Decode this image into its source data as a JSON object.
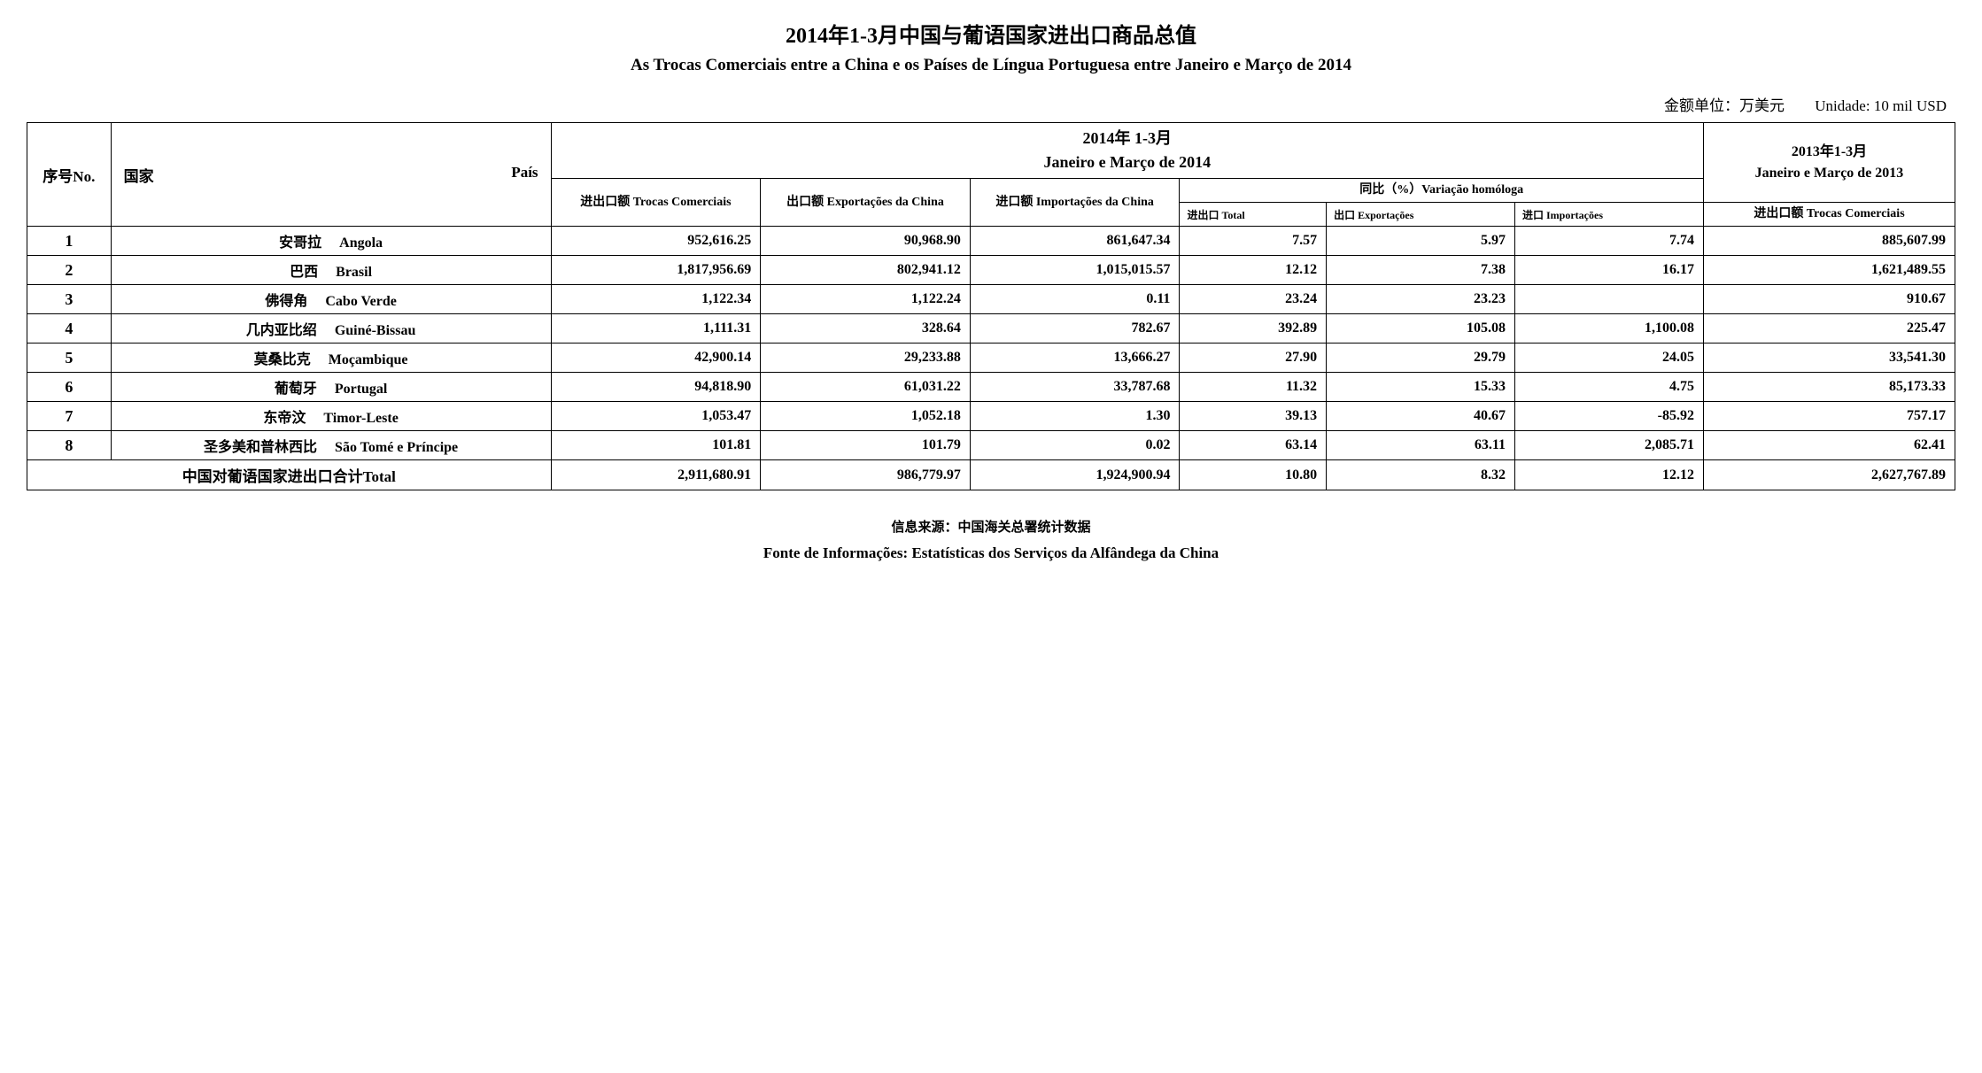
{
  "title_cn": "2014年1-3月中国与葡语国家进出口商品总值",
  "title_pt": "As Trocas Comerciais entre a China e os Países de Língua Portuguesa entre Janeiro e Março de  2014",
  "unit_cn": "金额单位：万美元",
  "unit_pt": "Unidade: 10 mil USD",
  "headers": {
    "no": "序号No.",
    "country_cn": "国家",
    "country_pt": "País",
    "period_2014_cn": "2014年 1-3月",
    "period_2014_pt": "Janeiro e Março de 2014",
    "period_2013_cn": "2013年1-3月",
    "period_2013_pt": "Janeiro e Março de 2013",
    "trocas": "进出口额     Trocas Comerciais",
    "export": "出口额     Exportações da China",
    "import": "进口额 Importações da China",
    "variation": "同比（%）Variação homóloga",
    "var_total": "进出口        Total",
    "var_export": "出口 Exportações",
    "var_import": "进口        Importações",
    "trocas_2013": "进出口额      Trocas Comerciais"
  },
  "rows": [
    {
      "no": "1",
      "cn": "安哥拉",
      "pt": "Angola",
      "trocas": "952,616.25",
      "export": "90,968.90",
      "import": "861,647.34",
      "v_total": "7.57",
      "v_exp": "5.97",
      "v_imp": "7.74",
      "trocas13": "885,607.99"
    },
    {
      "no": "2",
      "cn": "巴西",
      "pt": "Brasil",
      "trocas": "1,817,956.69",
      "export": "802,941.12",
      "import": "1,015,015.57",
      "v_total": "12.12",
      "v_exp": "7.38",
      "v_imp": "16.17",
      "trocas13": "1,621,489.55"
    },
    {
      "no": "3",
      "cn": "佛得角",
      "pt": "Cabo Verde",
      "trocas": "1,122.34",
      "export": "1,122.24",
      "import": "0.11",
      "v_total": "23.24",
      "v_exp": "23.23",
      "v_imp": "",
      "trocas13": "910.67"
    },
    {
      "no": "4",
      "cn": "几内亚比绍",
      "pt": "Guiné-Bissau",
      "trocas": "1,111.31",
      "export": "328.64",
      "import": "782.67",
      "v_total": "392.89",
      "v_exp": "105.08",
      "v_imp": "1,100.08",
      "trocas13": "225.47"
    },
    {
      "no": "5",
      "cn": "莫桑比克",
      "pt": "Moçambique",
      "trocas": "42,900.14",
      "export": "29,233.88",
      "import": "13,666.27",
      "v_total": "27.90",
      "v_exp": "29.79",
      "v_imp": "24.05",
      "trocas13": "33,541.30"
    },
    {
      "no": "6",
      "cn": "葡萄牙",
      "pt": "Portugal",
      "trocas": "94,818.90",
      "export": "61,031.22",
      "import": "33,787.68",
      "v_total": "11.32",
      "v_exp": "15.33",
      "v_imp": "4.75",
      "trocas13": "85,173.33"
    },
    {
      "no": "7",
      "cn": "东帝汶",
      "pt": "Timor-Leste",
      "trocas": "1,053.47",
      "export": "1,052.18",
      "import": "1.30",
      "v_total": "39.13",
      "v_exp": "40.67",
      "v_imp": "-85.92",
      "trocas13": "757.17"
    },
    {
      "no": "8",
      "cn": "圣多美和普林西比",
      "pt": "São Tomé e Príncipe",
      "trocas": "101.81",
      "export": "101.79",
      "import": "0.02",
      "v_total": "63.14",
      "v_exp": "63.11",
      "v_imp": "2,085.71",
      "trocas13": "62.41"
    }
  ],
  "total": {
    "label": "中国对葡语国家进出口合计Total",
    "trocas": "2,911,680.91",
    "export": "986,779.97",
    "import": "1,924,900.94",
    "v_total": "10.80",
    "v_exp": "8.32",
    "v_imp": "12.12",
    "trocas13": "2,627,767.89"
  },
  "source_cn": "信息来源：中国海关总署统计数据",
  "source_pt": "Fonte de Informações: Estatísticas dos Serviços da Alfândega da China"
}
